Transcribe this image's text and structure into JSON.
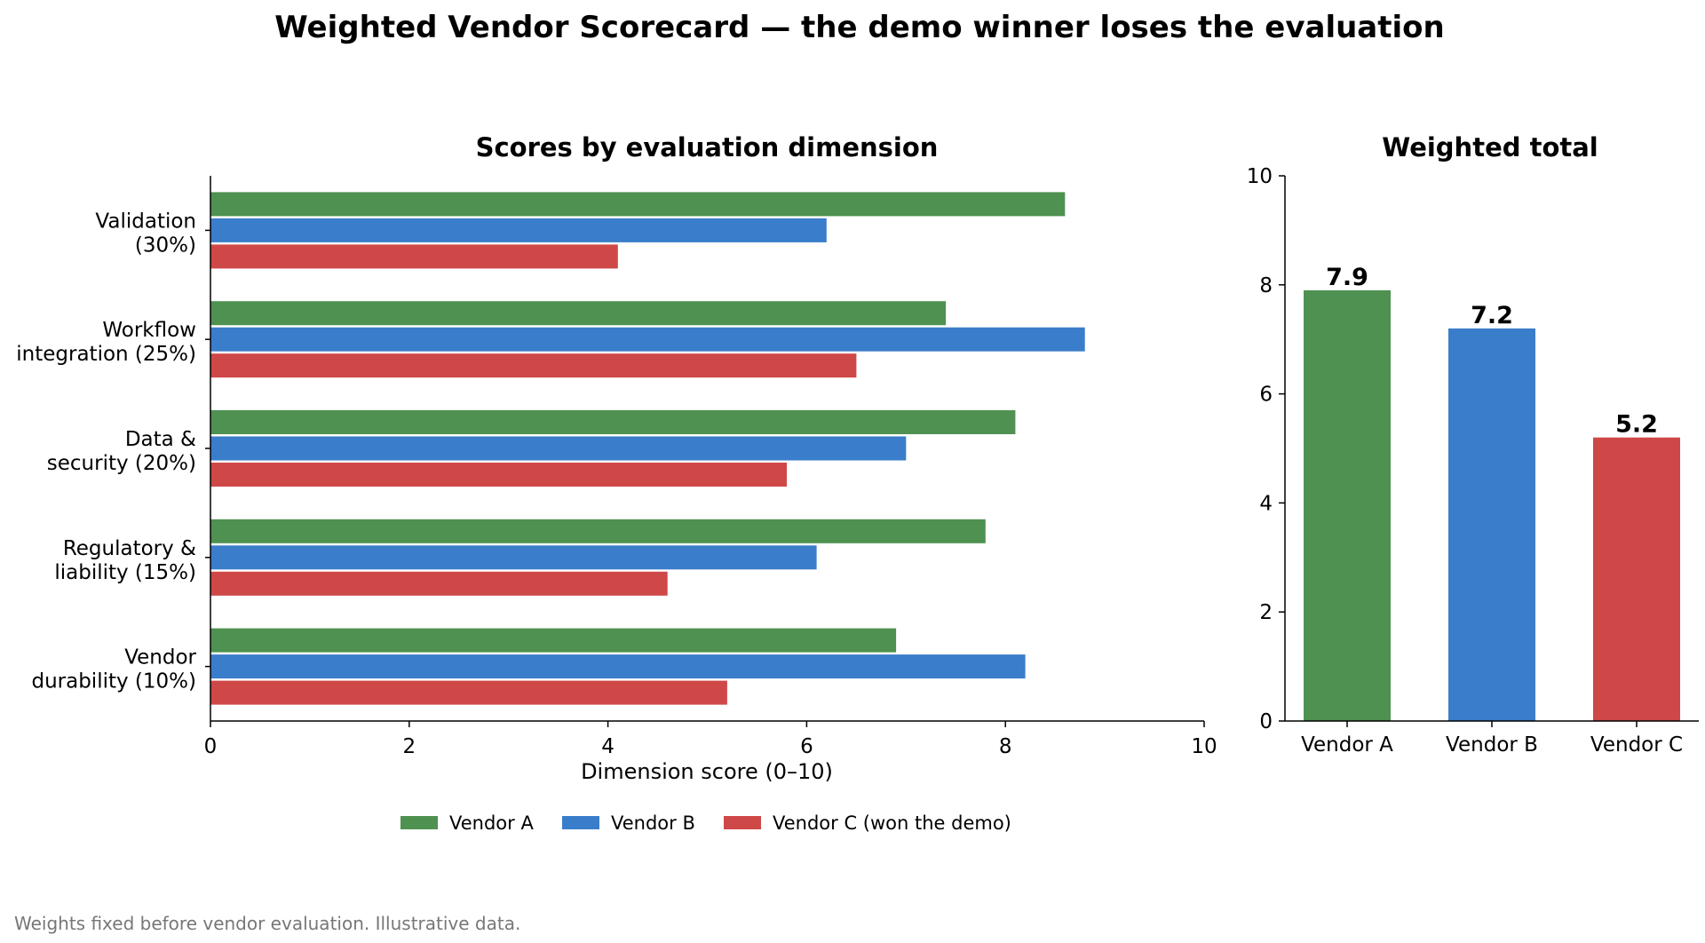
{
  "title": "Weighted Vendor Scorecard — the demo winner loses the evaluation",
  "footnote": "Weights fixed before vendor evaluation. Illustrative data.",
  "colors": {
    "Vendor A": "#4e9150",
    "Vendor B": "#3a7dca",
    "Vendor C": "#cf4848"
  },
  "chart_data": [
    {
      "type": "bar",
      "orientation": "horizontal",
      "title": "Scores by evaluation dimension",
      "xlabel": "Dimension score (0–10)",
      "ylabel": "",
      "xlim": [
        0,
        10
      ],
      "xticks": [
        0,
        2,
        4,
        6,
        8,
        10
      ],
      "categories": [
        [
          "Validation",
          "(30%)"
        ],
        [
          "Workflow",
          "integration (25%)"
        ],
        [
          "Data &",
          "security (20%)"
        ],
        [
          "Regulatory &",
          "liability (15%)"
        ],
        [
          "Vendor",
          "durability (10%)"
        ]
      ],
      "series": [
        {
          "name": "Vendor A",
          "legend": "Vendor A",
          "values": [
            8.6,
            7.4,
            8.1,
            7.8,
            6.9
          ]
        },
        {
          "name": "Vendor B",
          "legend": "Vendor B",
          "values": [
            6.2,
            8.8,
            7.0,
            6.1,
            8.2
          ]
        },
        {
          "name": "Vendor C",
          "legend": "Vendor C (won the demo)",
          "values": [
            4.1,
            6.5,
            5.8,
            4.6,
            5.2
          ]
        }
      ],
      "grid": false,
      "legend_position": "bottom-center"
    },
    {
      "type": "bar",
      "title": "Weighted total",
      "categories": [
        "Vendor A",
        "Vendor B",
        "Vendor C"
      ],
      "values": [
        7.9,
        7.2,
        5.2
      ],
      "value_labels": [
        "7.9",
        "7.2",
        "5.2"
      ],
      "ylim": [
        0,
        10
      ],
      "yticks": [
        0,
        2,
        4,
        6,
        8,
        10
      ],
      "xlabel": "",
      "ylabel": "",
      "grid": false
    }
  ]
}
